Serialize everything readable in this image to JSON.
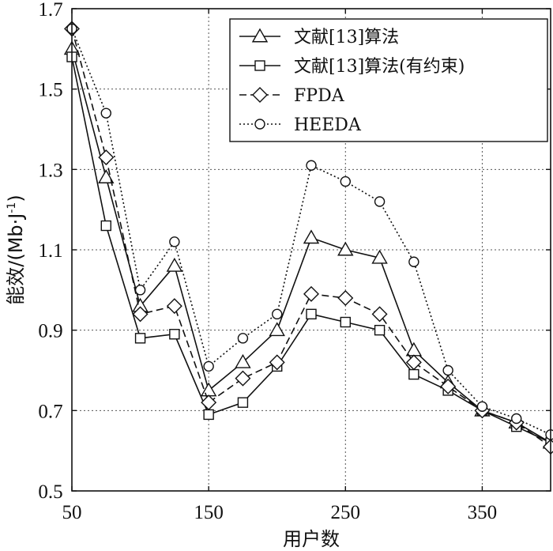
{
  "chart_data": {
    "type": "line",
    "title": "",
    "xlabel": "用户数",
    "ylabel_main": "能效/(Mb·J",
    "ylabel_sup": "-1",
    "ylabel_close": ")",
    "xlim": [
      50,
      400
    ],
    "ylim": [
      0.5,
      1.7
    ],
    "xticks": [
      50,
      150,
      250,
      350
    ],
    "xtick_labels": [
      "50",
      "150",
      "250",
      "350"
    ],
    "yticks": [
      0.5,
      0.7,
      0.9,
      1.1,
      1.3,
      1.5,
      1.7
    ],
    "ytick_labels": [
      "0.5",
      "0.7",
      "0.9",
      "1.1",
      "1.3",
      "1.5",
      "1.7"
    ],
    "grid": true,
    "legend_position": "top-right",
    "x": [
      50,
      75,
      100,
      125,
      150,
      175,
      200,
      225,
      250,
      275,
      300,
      325,
      350,
      375,
      400
    ],
    "series": [
      {
        "name": "文献[13]算法",
        "marker": "triangle",
        "dash": "solid",
        "values": [
          1.6,
          1.28,
          0.96,
          1.06,
          0.75,
          0.82,
          0.9,
          1.13,
          1.1,
          1.08,
          0.85,
          0.77,
          0.7,
          0.67,
          0.62
        ]
      },
      {
        "name": "文献[13]算法(有约束)",
        "marker": "square",
        "dash": "solid",
        "values": [
          1.58,
          1.16,
          0.88,
          0.89,
          0.69,
          0.72,
          0.81,
          0.94,
          0.92,
          0.9,
          0.79,
          0.75,
          0.7,
          0.66,
          0.62
        ]
      },
      {
        "name": "FPDA",
        "marker": "diamond",
        "dash": "dashed",
        "values": [
          1.65,
          1.33,
          0.94,
          0.96,
          0.72,
          0.78,
          0.82,
          0.99,
          0.98,
          0.94,
          0.82,
          0.76,
          0.7,
          0.67,
          0.61
        ]
      },
      {
        "name": "HEEDA",
        "marker": "circle",
        "dash": "dotted",
        "values": [
          1.65,
          1.44,
          1.0,
          1.12,
          0.81,
          0.88,
          0.94,
          1.31,
          1.27,
          1.22,
          1.07,
          0.8,
          0.71,
          0.68,
          0.64
        ]
      }
    ]
  }
}
